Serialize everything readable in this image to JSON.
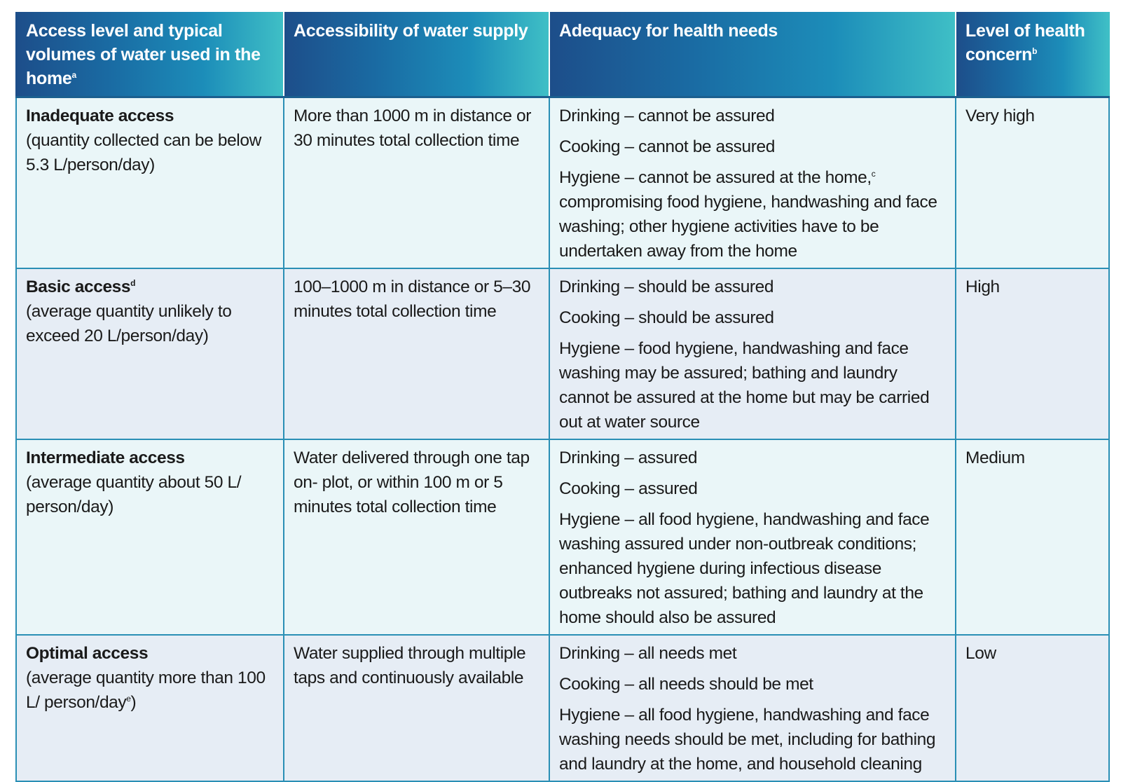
{
  "table": {
    "headers": [
      {
        "text": "Access level and typical volumes of water used in the home",
        "sup": "a"
      },
      {
        "text": "Accessibility of water supply",
        "sup": ""
      },
      {
        "text": "Adequacy for health needs",
        "sup": ""
      },
      {
        "text": "Level of health concern",
        "sup": "b"
      }
    ],
    "rows": [
      {
        "level": {
          "name": "Inadequate access",
          "name_sup": "",
          "detail": "(quantity collected can be below 5.3 L/person/day)",
          "detail_sup": "",
          "detail_tail": ""
        },
        "accessibility": "More than 1000 m in distance or 30 minutes total collection time",
        "adequacy": {
          "drinking": "Drinking – cannot be assured",
          "cooking": "Cooking – cannot be assured",
          "hygiene_a": "Hygiene – cannot be assured at the home,",
          "hygiene_sup": "c",
          "hygiene_b": " compromising food hygiene, handwashing and face washing; other hygiene activities have to be undertaken away from the home"
        },
        "concern": "Very high"
      },
      {
        "level": {
          "name": "Basic access",
          "name_sup": "d",
          "detail": "(average quantity unlikely to exceed 20 L/person/day)",
          "detail_sup": "",
          "detail_tail": ""
        },
        "accessibility": "100–1000 m in distance or 5–30 minutes total collection time",
        "adequacy": {
          "drinking": "Drinking – should be assured",
          "cooking": "Cooking – should be assured",
          "hygiene_a": "Hygiene – food hygiene, handwashing and face washing may be assured; bathing and laundry cannot be assured at the home but may be carried out at water source",
          "hygiene_sup": "",
          "hygiene_b": ""
        },
        "concern": "High"
      },
      {
        "level": {
          "name": "Intermediate access",
          "name_sup": "",
          "detail": "(average quantity about 50 L/ person/day)",
          "detail_sup": "",
          "detail_tail": ""
        },
        "accessibility": "Water delivered through one tap on- plot, or within 100 m or 5 minutes total collection time",
        "adequacy": {
          "drinking": "Drinking – assured",
          "cooking": "Cooking – assured",
          "hygiene_a": "Hygiene – all food hygiene, handwashing and face washing assured under non-outbreak conditions; enhanced hygiene during infectious disease outbreaks not assured; bathing and laundry at the home should also be assured",
          "hygiene_sup": "",
          "hygiene_b": ""
        },
        "concern": "Medium"
      },
      {
        "level": {
          "name": "Optimal access",
          "name_sup": "",
          "detail": "(average quantity more than 100 L/ person/day",
          "detail_sup": "e",
          "detail_tail": ")"
        },
        "accessibility": "Water supplied through multiple taps and continuously available",
        "adequacy": {
          "drinking": "Drinking – all needs met",
          "cooking": "Cooking – all needs should be met",
          "hygiene_a": "Hygiene – all food hygiene, handwashing and face washing needs should be met, including for bathing and laundry at the home, and household cleaning",
          "hygiene_sup": "",
          "hygiene_b": ""
        },
        "concern": "Low"
      }
    ]
  }
}
